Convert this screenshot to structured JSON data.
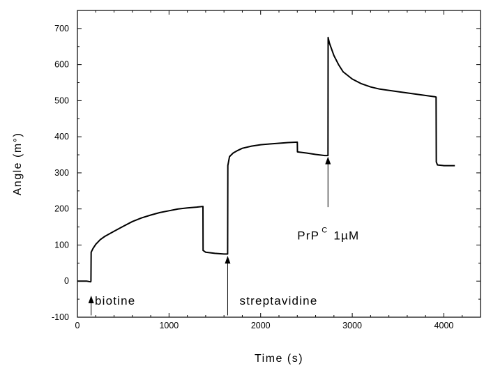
{
  "chart_data": {
    "type": "line",
    "xlabel": "Time (s)",
    "ylabel": "Angle (m°)",
    "xlim": [
      0,
      4400
    ],
    "ylim": [
      -100,
      750
    ],
    "x_ticks": [
      0,
      1000,
      2000,
      3000,
      4000
    ],
    "x_tick_labels": [
      "0",
      "1000",
      "2000",
      "3000",
      "4000"
    ],
    "y_ticks": [
      -100,
      0,
      100,
      200,
      300,
      400,
      500,
      600,
      700
    ],
    "y_tick_labels": [
      "-100",
      "0",
      "100",
      "200",
      "300",
      "400",
      "500",
      "600",
      "700"
    ],
    "grid": false,
    "series": [
      {
        "color": "#000000",
        "points": [
          [
            0,
            0
          ],
          [
            100,
            0
          ],
          [
            145,
            -2
          ],
          [
            148,
            0
          ],
          [
            150,
            80
          ],
          [
            170,
            90
          ],
          [
            200,
            102
          ],
          [
            250,
            115
          ],
          [
            300,
            124
          ],
          [
            400,
            138
          ],
          [
            500,
            152
          ],
          [
            600,
            165
          ],
          [
            700,
            175
          ],
          [
            800,
            183
          ],
          [
            900,
            190
          ],
          [
            1000,
            195
          ],
          [
            1100,
            200
          ],
          [
            1200,
            203
          ],
          [
            1300,
            205
          ],
          [
            1370,
            207
          ],
          [
            1372,
            85
          ],
          [
            1400,
            80
          ],
          [
            1500,
            77
          ],
          [
            1600,
            75
          ],
          [
            1640,
            75
          ],
          [
            1642,
            320
          ],
          [
            1660,
            345
          ],
          [
            1700,
            355
          ],
          [
            1750,
            362
          ],
          [
            1800,
            368
          ],
          [
            1900,
            374
          ],
          [
            2000,
            378
          ],
          [
            2100,
            380
          ],
          [
            2200,
            382
          ],
          [
            2300,
            384
          ],
          [
            2400,
            385
          ],
          [
            2402,
            358
          ],
          [
            2500,
            355
          ],
          [
            2600,
            351
          ],
          [
            2700,
            348
          ],
          [
            2735,
            348
          ],
          [
            2737,
            675
          ],
          [
            2750,
            660
          ],
          [
            2800,
            625
          ],
          [
            2850,
            600
          ],
          [
            2900,
            580
          ],
          [
            3000,
            560
          ],
          [
            3100,
            547
          ],
          [
            3200,
            538
          ],
          [
            3300,
            532
          ],
          [
            3500,
            525
          ],
          [
            3700,
            518
          ],
          [
            3900,
            511
          ],
          [
            3915,
            510
          ],
          [
            3917,
            330
          ],
          [
            3930,
            322
          ],
          [
            4000,
            320
          ],
          [
            4120,
            320
          ]
        ]
      }
    ],
    "annotations": [
      {
        "text": "biotine",
        "arrow_x": 150,
        "arrow_y_from": -95,
        "arrow_y_to": -40,
        "text_x": 190,
        "text_y": -65
      },
      {
        "text": "streptavidine",
        "arrow_x": 1640,
        "arrow_y_from": -95,
        "arrow_y_to": 70,
        "text_x": 1770,
        "text_y": -65
      },
      {
        "text": "PrP",
        "superscript": "C",
        "suffix": "1µM",
        "arrow_x": 2735,
        "arrow_y_from": 205,
        "arrow_y_to": 345,
        "text_x": 2400,
        "text_y": 115
      }
    ]
  }
}
